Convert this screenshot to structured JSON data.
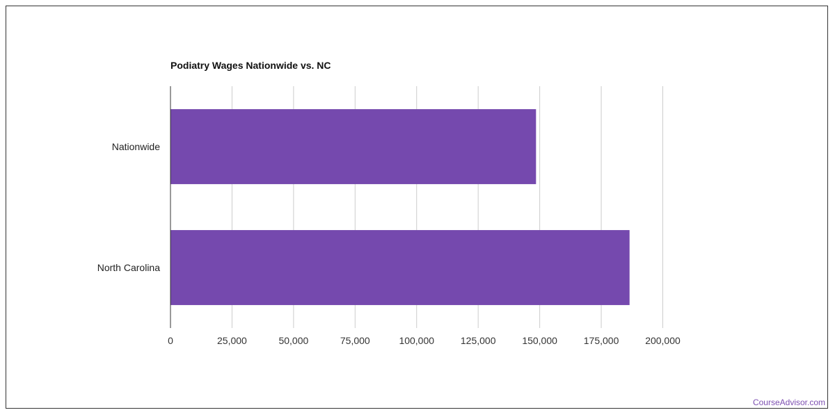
{
  "chart_data": {
    "type": "bar",
    "orientation": "horizontal",
    "title": "Podiatry Wages Nationwide vs. NC",
    "xlabel": "",
    "ylabel": "",
    "categories": [
      "Nationwide",
      "North Carolina"
    ],
    "values": [
      148500,
      186500
    ],
    "xlim": [
      0,
      200000
    ],
    "xticks": [
      0,
      25000,
      50000,
      75000,
      100000,
      125000,
      150000,
      175000,
      200000
    ],
    "xtick_labels": [
      "0",
      "25,000",
      "50,000",
      "75,000",
      "100,000",
      "125,000",
      "150,000",
      "175,000",
      "200,000"
    ],
    "grid": true,
    "legend": "none",
    "bar_color": "#7549ae",
    "grid_color": "#cccccc"
  },
  "footer": {
    "watermark": "CourseAdvisor.com"
  }
}
